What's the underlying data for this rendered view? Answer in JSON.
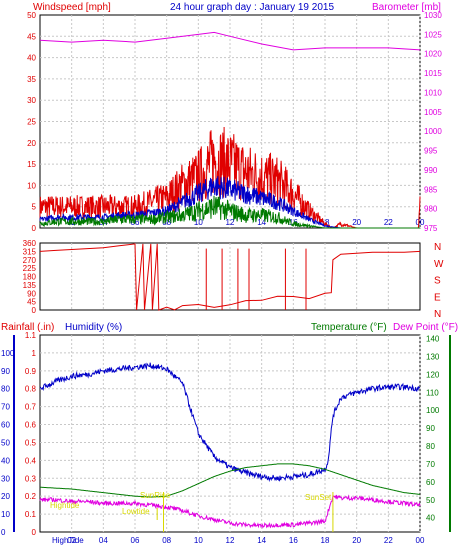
{
  "header": {
    "left_label": "Windspeed [mph]",
    "title": "24 hour graph day : January 19 2015",
    "right_label": "Barometer [mb]"
  },
  "colors": {
    "red": "#e00000",
    "blue": "#0000c8",
    "green": "#007a00",
    "magenta": "#e000e0",
    "yellow": "#d8d800",
    "frame": "#000000",
    "grid": "#b0b0b0",
    "grid_dash": "#c8c8c8"
  },
  "chart_data": [
    {
      "type": "line",
      "name_key": "wind",
      "x_ticks": [
        "02",
        "04",
        "06",
        "08",
        "10",
        "12",
        "14",
        "16",
        "18",
        "20",
        "22",
        "00"
      ],
      "y_left": {
        "label": "Windspeed [mph]",
        "range": [
          0,
          50
        ],
        "ticks": [
          0,
          5,
          10,
          15,
          20,
          25,
          30,
          35,
          40,
          45,
          50
        ]
      },
      "y_right": {
        "label": "Barometer [mb]",
        "range": [
          975,
          1030
        ],
        "ticks": [
          975,
          980,
          985,
          990,
          995,
          1000,
          1005,
          1010,
          1015,
          1020,
          1025,
          1030
        ]
      },
      "series": [
        {
          "color": "red",
          "axis": "left",
          "style": "gust",
          "x": [
            0,
            1,
            2,
            3,
            4,
            5,
            6,
            7,
            8,
            9,
            10,
            11,
            12,
            13,
            14,
            15,
            16,
            17,
            18,
            18.5,
            19,
            20,
            21,
            22,
            23,
            23.9,
            24
          ],
          "y": [
            5,
            5,
            5,
            5,
            5,
            5,
            5,
            6,
            7,
            10,
            12,
            16,
            15,
            13,
            12,
            11,
            8,
            4,
            1,
            0,
            1,
            0,
            0,
            0,
            0,
            0,
            5
          ]
        },
        {
          "color": "blue",
          "axis": "left",
          "style": "avg",
          "x": [
            0,
            1,
            2,
            3,
            4,
            5,
            6,
            7,
            8,
            9,
            10,
            11,
            12,
            13,
            14,
            15,
            16,
            17,
            18,
            19
          ],
          "y": [
            2,
            2.5,
            2.5,
            2.5,
            2.5,
            3,
            3,
            3.5,
            4,
            6,
            8,
            10,
            9,
            8,
            7,
            6,
            4,
            2,
            0.5,
            0
          ]
        },
        {
          "color": "green",
          "axis": "left",
          "style": "low",
          "x": [
            0,
            1,
            2,
            3,
            4,
            5,
            6,
            7,
            8,
            9,
            10,
            11,
            12,
            13,
            14,
            15,
            16,
            17,
            18,
            19
          ],
          "y": [
            1,
            1.5,
            1.5,
            1.5,
            1.5,
            2,
            2,
            2,
            2.5,
            3,
            4,
            5,
            4,
            3,
            3,
            2.5,
            1,
            0.5,
            0,
            0
          ]
        },
        {
          "color": "magenta",
          "axis": "right",
          "style": "smooth",
          "x": [
            0,
            2,
            4,
            6,
            8,
            10,
            11,
            12,
            14,
            16,
            18,
            20,
            22,
            24
          ],
          "y": [
            1023.5,
            1023,
            1023.5,
            1023,
            1024,
            1025,
            1025.5,
            1024.5,
            1022.5,
            1021,
            1021.5,
            1021.5,
            1021.5,
            1021
          ]
        }
      ],
      "xlabel": "",
      "ylabel": ""
    },
    {
      "type": "line",
      "name_key": "direction",
      "x_ticks": [],
      "y_left": {
        "label": "",
        "range": [
          0,
          360
        ],
        "ticks": [
          0,
          45,
          90,
          135,
          180,
          225,
          270,
          315,
          360
        ]
      },
      "y_right": {
        "label": "",
        "labels": [
          "N",
          "W",
          "S",
          "E",
          "N"
        ]
      },
      "series": [
        {
          "color": "red",
          "axis": "left",
          "style": "direction",
          "x": [
            0,
            1,
            2,
            3,
            4,
            5,
            6,
            6.1,
            6.5,
            6.6,
            7,
            7.1,
            7.4,
            7.5,
            8,
            8.5,
            9,
            10,
            11,
            12,
            13,
            14,
            15,
            16,
            17,
            18,
            18.4,
            18.5,
            19,
            20,
            21,
            22,
            23,
            24
          ],
          "y": [
            315,
            320,
            325,
            330,
            335,
            345,
            355,
            0,
            355,
            0,
            355,
            0,
            355,
            0,
            10,
            10,
            15,
            20,
            25,
            30,
            40,
            50,
            60,
            70,
            75,
            80,
            80,
            270,
            300,
            305,
            310,
            310,
            310,
            315
          ]
        }
      ]
    },
    {
      "type": "line",
      "name_key": "rain_humidity_temp",
      "header": {
        "rainfall_label": "Rainfall (.in)",
        "humidity_label": "Humidity (%)",
        "temperature_label": "Temperature (°F)",
        "dewpoint_label": "Dew Point (°F)"
      },
      "x_ticks": [
        "02",
        "04",
        "06",
        "08",
        "10",
        "12",
        "14",
        "16",
        "18",
        "20",
        "22",
        "00"
      ],
      "first_tick_label": "HighTide",
      "y_left_humidity": {
        "range": [
          0,
          100
        ],
        "ticks": [
          0,
          10,
          20,
          30,
          40,
          50,
          60,
          70,
          80,
          90,
          100
        ]
      },
      "y_left_rain": {
        "range": [
          0,
          1.1
        ],
        "ticks": [
          "0",
          "0.1",
          "0.2",
          "0.3",
          "0.4",
          "0.5",
          "0.6",
          "0.7",
          "0.8",
          "0.9",
          "1",
          "1.1"
        ]
      },
      "y_right_temp": {
        "range": [
          32,
          142
        ],
        "ticks": [
          40,
          50,
          60,
          70,
          80,
          90,
          100,
          110,
          120,
          130,
          140
        ]
      },
      "annotations": {
        "hightide_left": "Hightide",
        "lowtide": "Lowtide",
        "sunrise": "SunRise",
        "sunset": "SunSet"
      },
      "series": [
        {
          "color": "blue",
          "axis": "humidity",
          "style": "humidity",
          "x": [
            0,
            1,
            2,
            3,
            4,
            5,
            6,
            7,
            8,
            9,
            10,
            11,
            12,
            13,
            14,
            15,
            16,
            17,
            18,
            18.2,
            18.5,
            19,
            20,
            21,
            22,
            23,
            24
          ],
          "y": [
            80,
            84,
            87,
            88,
            90,
            91,
            92,
            93,
            91,
            83,
            55,
            42,
            36,
            33,
            31,
            30,
            31,
            32,
            35,
            40,
            65,
            75,
            78,
            80,
            81,
            81,
            80
          ]
        },
        {
          "color": "green",
          "axis": "temp",
          "style": "smooth",
          "x": [
            0,
            1,
            2,
            3,
            4,
            5,
            6,
            7,
            8,
            9,
            10,
            11,
            12,
            13,
            14,
            15,
            16,
            17,
            18,
            19,
            20,
            21,
            22,
            23,
            24
          ],
          "y": [
            57,
            56.5,
            56,
            55,
            54,
            53,
            52,
            51.5,
            52,
            55,
            59,
            63,
            66,
            68,
            69,
            70,
            70,
            69,
            67,
            64,
            61,
            58,
            56,
            54,
            53
          ]
        },
        {
          "color": "magenta",
          "axis": "temp",
          "style": "dewpoint",
          "x": [
            0,
            1,
            2,
            3,
            4,
            5,
            6,
            7,
            8,
            9,
            10,
            11,
            12,
            13,
            14,
            15,
            16,
            17,
            18,
            18.5,
            19,
            20,
            21,
            22,
            23,
            24
          ],
          "y": [
            50,
            50,
            49,
            49,
            48,
            48,
            48,
            47,
            46,
            44,
            41,
            39,
            37,
            36,
            35.5,
            36,
            36,
            37,
            38,
            52,
            51,
            51,
            50,
            49,
            48,
            47
          ]
        }
      ]
    }
  ]
}
